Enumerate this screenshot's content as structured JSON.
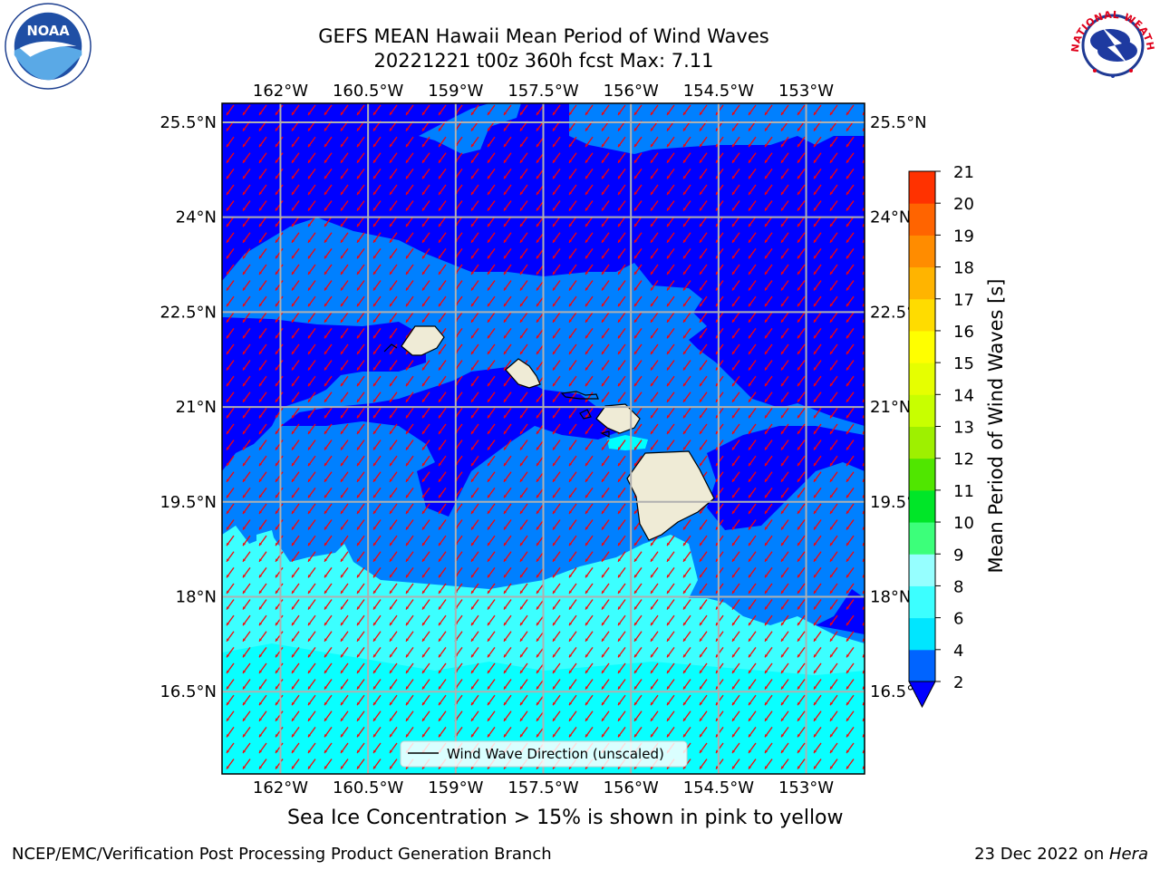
{
  "title": {
    "line1": "GEFS MEAN Hawaii Mean Period of Wind Waves",
    "line2": "20221221 t00z 360h fcst   Max: 7.11"
  },
  "chart_data": {
    "type": "map-contour",
    "region": "Hawaii",
    "lon_range": [
      -163,
      -152
    ],
    "lat_range": [
      15.2,
      25.8
    ],
    "lon_ticks": [
      "162°W",
      "160.5°W",
      "159°W",
      "157.5°W",
      "156°W",
      "154.5°W",
      "153°W"
    ],
    "lon_tick_values": [
      -162,
      -160.5,
      -159,
      -157.5,
      -156,
      -154.5,
      -153
    ],
    "lat_ticks": [
      "25.5°N",
      "24°N",
      "22.5°N",
      "21°N",
      "19.5°N",
      "18°N",
      "16.5°N"
    ],
    "lat_tick_values": [
      25.5,
      24,
      22.5,
      21,
      19.5,
      18,
      16.5
    ],
    "grid": true,
    "max_value": 7.11,
    "legend": {
      "label": "Wind Wave Direction (unscaled)",
      "placement": "lower-center"
    },
    "arrow_direction": "southwest",
    "colorbar": {
      "label": "Mean Period of Wind Waves [s]",
      "ticks": [
        "2",
        "4",
        "6",
        "8",
        "9",
        "10",
        "11",
        "12",
        "13",
        "14",
        "15",
        "16",
        "17",
        "18",
        "19",
        "20",
        "21"
      ],
      "colors": [
        "#0064ff",
        "#00e6ff",
        "#3cffff",
        "#96ffff",
        "#3cff7a",
        "#00e628",
        "#50e600",
        "#9ef000",
        "#c8ff00",
        "#e6ff00",
        "#ffff00",
        "#ffdc00",
        "#ffb400",
        "#ff8c00",
        "#ff6400",
        "#ff3200",
        "#ff0000"
      ],
      "under_color": "#0000ff"
    },
    "fill_colors": {
      "under_2": "#0000ff",
      "2_to_4": "#0080ff",
      "6_to_8": "#3cffff",
      "4_to_6": "#00ffff",
      "land": "#efebd6",
      "arrow": "#ff0000",
      "grid": "#b0b0b0"
    }
  },
  "notes": {
    "ice": "Sea Ice Concentration > 15% is shown in pink to yellow"
  },
  "footer": {
    "left": "NCEP/EMC/Verification Post Processing Product Generation Branch",
    "date": "23 Dec 2022 on ",
    "machine": "Hera"
  },
  "logos": {
    "noaa_text": "NOAA",
    "nws_text": "NATIONAL WEATHER SERVICE"
  }
}
